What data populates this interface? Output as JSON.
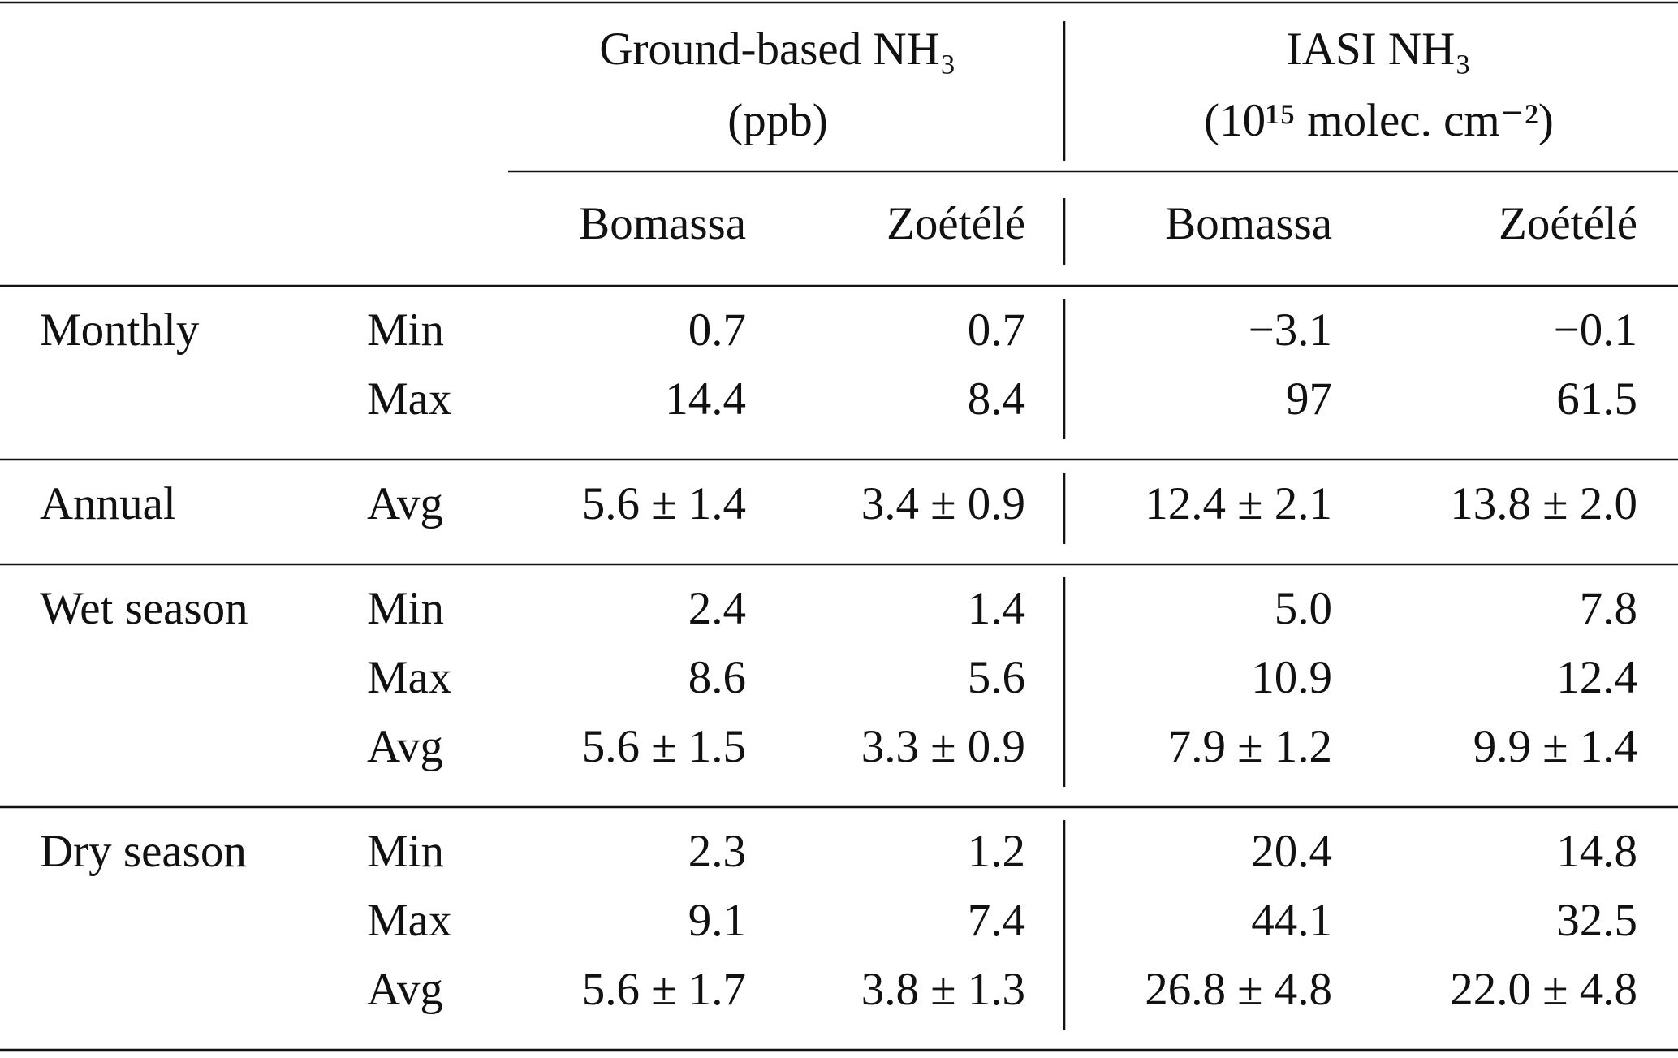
{
  "table": {
    "column_groups": [
      {
        "label_lines": [
          "Ground-based NH₃",
          "(ppb)"
        ]
      },
      {
        "label_lines": [
          "IASI NH₃",
          "(10¹⁵ molec. cm⁻²)"
        ]
      }
    ],
    "columns": [
      "Bomassa",
      "Zoétélé",
      "Bomassa",
      "Zoétélé"
    ],
    "sections": [
      {
        "label": "Monthly",
        "rows": [
          {
            "stat": "Min",
            "cells": [
              "0.7",
              "0.7",
              "−3.1",
              "−0.1"
            ]
          },
          {
            "stat": "Max",
            "cells": [
              "14.4",
              "8.4",
              "97",
              "61.5"
            ]
          }
        ]
      },
      {
        "label": "Annual",
        "rows": [
          {
            "stat": "Avg",
            "cells": [
              "5.6 ± 1.4",
              "3.4 ± 0.9",
              "12.4 ± 2.1",
              "13.8 ± 2.0"
            ]
          }
        ]
      },
      {
        "label": "Wet season",
        "rows": [
          {
            "stat": "Min",
            "cells": [
              "2.4",
              "1.4",
              "5.0",
              "7.8"
            ]
          },
          {
            "stat": "Max",
            "cells": [
              "8.6",
              "5.6",
              "10.9",
              "12.4"
            ]
          },
          {
            "stat": "Avg",
            "cells": [
              "5.6 ± 1.5",
              "3.3 ± 0.9",
              "7.9 ± 1.2",
              "9.9 ± 1.4"
            ]
          }
        ]
      },
      {
        "label": "Dry season",
        "rows": [
          {
            "stat": "Min",
            "cells": [
              "2.3",
              "1.2",
              "20.4",
              "14.8"
            ]
          },
          {
            "stat": "Max",
            "cells": [
              "9.1",
              "7.4",
              "44.1",
              "32.5"
            ]
          },
          {
            "stat": "Avg",
            "cells": [
              "5.6 ± 1.7",
              "3.8 ± 1.3",
              "26.8 ± 4.8",
              "22.0 ± 4.8"
            ]
          }
        ]
      }
    ]
  }
}
